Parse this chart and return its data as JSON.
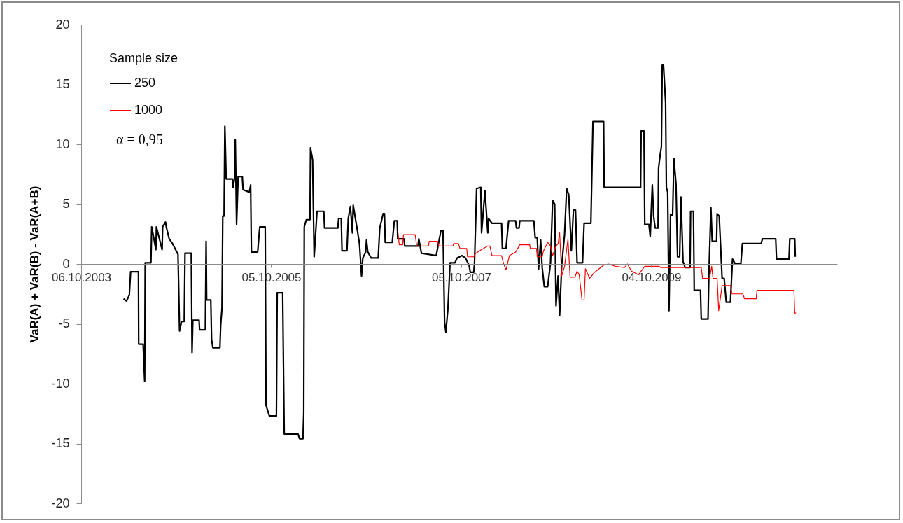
{
  "chart_data": {
    "type": "line",
    "ylabel": "VaR(A) + VaR(B) - VaR(A+B)",
    "legend_title": "Sample size",
    "legend": "top left",
    "grid": false,
    "annotations": [
      "α = 0,95"
    ],
    "xlim": [
      "2003-10-06",
      "2011-09-18"
    ],
    "xticks": [
      {
        "value": "2003-10-06",
        "label": "06.10.2003"
      },
      {
        "value": "2005-10-05",
        "label": "05.10.2005"
      },
      {
        "value": "2007-10-05",
        "label": "05.10.2007"
      },
      {
        "value": "2009-10-04",
        "label": "04.10.2009"
      }
    ],
    "ylim": [
      -20,
      20
    ],
    "yticks": [
      -20,
      -15,
      -10,
      -5,
      0,
      5,
      10,
      15,
      20
    ],
    "series": [
      {
        "name": "250",
        "color": "#000000",
        "x": [
          "2004-03-17",
          "2004-03-28",
          "2004-04-08",
          "2004-04-13",
          "2004-05-13",
          "2004-05-14",
          "2004-05-31",
          "2004-06-06",
          "2004-06-08",
          "2004-06-30",
          "2004-07-03",
          "2004-07-19",
          "2004-07-21",
          "2004-08-12",
          "2004-08-14",
          "2004-08-25",
          "2004-08-28",
          "2004-09-08",
          "2004-09-21",
          "2004-10-12",
          "2004-10-18",
          "2004-10-26",
          "2004-11-05",
          "2004-11-08",
          "2004-12-02",
          "2004-12-05",
          "2004-12-08",
          "2005-01-01",
          "2005-01-03",
          "2005-01-25",
          "2005-01-28",
          "2005-01-30",
          "2005-02-15",
          "2005-02-18",
          "2005-02-23",
          "2005-03-22",
          "2005-03-25",
          "2005-03-30",
          "2005-04-02",
          "2005-04-07",
          "2005-04-10",
          "2005-04-15",
          "2005-05-09",
          "2005-05-12",
          "2005-05-17",
          "2005-05-20",
          "2005-05-25",
          "2005-05-31",
          "2005-06-16",
          "2005-06-19",
          "2005-07-13",
          "2005-07-18",
          "2005-07-21",
          "2005-08-14",
          "2005-08-22",
          "2005-09-12",
          "2005-09-15",
          "2005-09-28",
          "2005-10-25",
          "2005-10-28",
          "2005-11-18",
          "2005-11-24",
          "2006-01-16",
          "2006-01-22",
          "2006-02-04",
          "2006-02-07",
          "2006-02-09",
          "2006-02-17",
          "2006-03-03",
          "2006-03-05",
          "2006-03-13",
          "2006-03-19",
          "2006-03-30",
          "2006-04-25",
          "2006-04-28",
          "2006-06-18",
          "2006-06-21",
          "2006-07-01",
          "2006-07-04",
          "2006-07-23",
          "2006-07-28",
          "2006-08-05",
          "2006-08-13",
          "2006-08-16",
          "2006-09-01",
          "2006-09-09",
          "2006-09-17",
          "2006-09-22",
          "2006-10-03",
          "2006-10-06",
          "2006-10-11",
          "2006-10-24",
          "2006-11-20",
          "2006-11-26",
          "2006-12-09",
          "2006-12-14",
          "2006-12-17",
          "2007-01-13",
          "2007-01-21",
          "2007-02-01",
          "2007-02-03",
          "2007-02-27",
          "2007-03-02",
          "2007-04-22",
          "2007-04-25",
          "2007-05-05",
          "2007-07-01",
          "2007-07-19",
          "2007-07-27",
          "2007-08-02",
          "2007-08-07",
          "2007-08-15",
          "2007-08-23",
          "2007-09-11",
          "2007-09-19",
          "2007-10-08",
          "2007-10-21",
          "2007-11-04",
          "2007-11-09",
          "2007-11-22",
          "2007-11-25",
          "2007-12-03",
          "2007-12-19",
          "2007-12-22",
          "2008-01-04",
          "2008-01-15",
          "2008-01-18",
          "2008-01-31",
          "2008-03-08",
          "2008-03-11",
          "2008-03-25",
          "2008-04-04",
          "2008-05-01",
          "2008-05-04",
          "2008-05-14",
          "2008-05-17",
          "2008-07-10",
          "2008-07-15",
          "2008-07-23",
          "2008-07-28",
          "2008-08-05",
          "2008-08-11",
          "2008-08-19",
          "2008-09-01",
          "2008-09-12",
          "2008-09-20",
          "2008-09-28",
          "2008-10-03",
          "2008-10-11",
          "2008-10-17",
          "2008-10-25",
          "2008-11-05",
          "2008-11-13",
          "2008-11-21",
          "2008-12-01",
          "2008-12-09",
          "2008-12-17",
          "2008-12-23",
          "2009-01-13",
          "2009-01-19",
          "2009-02-14",
          "2009-02-22",
          "2009-04-04",
          "2009-04-06",
          "2009-08-24",
          "2009-08-26",
          "2009-09-06",
          "2009-09-09",
          "2009-09-25",
          "2009-09-30",
          "2009-10-08",
          "2009-10-13",
          "2009-10-19",
          "2009-10-30",
          "2009-11-01",
          "2009-11-07",
          "2009-11-12",
          "2009-11-15",
          "2009-11-20",
          "2009-11-28",
          "2009-12-01",
          "2009-12-06",
          "2009-12-11",
          "2009-12-17",
          "2009-12-25",
          "2009-12-30",
          "2010-01-07",
          "2010-01-13",
          "2010-01-21",
          "2010-01-26",
          "2010-02-03",
          "2010-02-11",
          "2010-03-02",
          "2010-03-04",
          "2010-03-15",
          "2010-03-18",
          "2010-04-11",
          "2010-04-14",
          "2010-05-10",
          "2010-05-13",
          "2010-05-21",
          "2010-05-26",
          "2010-06-12",
          "2010-06-14",
          "2010-06-22",
          "2010-07-03",
          "2010-07-11",
          "2010-07-19",
          "2010-08-04",
          "2010-08-12",
          "2010-08-23",
          "2010-09-13",
          "2010-09-19",
          "2010-11-30",
          "2010-12-05",
          "2011-01-25",
          "2011-01-28",
          "2011-03-17",
          "2011-03-20",
          "2011-04-08",
          "2011-04-10"
        ],
        "values": [
          -2.9,
          -3.1,
          -2.6,
          -0.65,
          -0.65,
          -6.7,
          -6.7,
          -9.8,
          0.1,
          0.1,
          3.1,
          1.2,
          3.1,
          1.2,
          3.1,
          3.5,
          3.1,
          2.1,
          1.7,
          0.8,
          -5.6,
          -4.8,
          -4.8,
          0.9,
          0.9,
          -7.4,
          -4.7,
          -4.7,
          -5.5,
          -5.5,
          1.9,
          -3.0,
          -3.0,
          -6.3,
          -7.0,
          -7.0,
          -5.1,
          -3.7,
          4.0,
          4.0,
          11.5,
          7.1,
          7.1,
          6.4,
          7.2,
          10.4,
          3.3,
          7.3,
          7.3,
          6.2,
          6.0,
          6.6,
          1.0,
          1.0,
          3.1,
          3.1,
          -11.8,
          -12.7,
          -12.7,
          -2.4,
          -2.4,
          -14.2,
          -14.2,
          -14.6,
          -14.6,
          -12.4,
          3.1,
          3.7,
          3.7,
          9.7,
          8.7,
          0.6,
          4.4,
          4.4,
          3.0,
          3.0,
          3.8,
          3.8,
          1.1,
          1.1,
          3.8,
          4.8,
          2.6,
          4.9,
          2.8,
          1.7,
          -1.0,
          0.5,
          1.0,
          2.0,
          1.0,
          0.5,
          0.5,
          3.0,
          4.2,
          4.2,
          1.8,
          1.8,
          3.6,
          3.6,
          2.1,
          2.1,
          1.5,
          1.5,
          2.1,
          0.9,
          0.7,
          2.8,
          2.8,
          -4.9,
          -5.7,
          -3.7,
          0.1,
          0.1,
          0.5,
          0.7,
          0.5,
          -0.1,
          -0.7,
          -0.7,
          0.1,
          6.3,
          6.4,
          2.6,
          6.1,
          2.6,
          3.8,
          3.4,
          3.4,
          1.3,
          1.3,
          3.6,
          3.6,
          3.0,
          3.0,
          3.6,
          3.6,
          2.2,
          2.2,
          -0.45,
          2.0,
          -0.3,
          -1.9,
          -1.9,
          0.1,
          5.3,
          5.0,
          -3.5,
          -1.0,
          -4.3,
          -0.1,
          2.5,
          6.3,
          5.8,
          1.1,
          4.5,
          4.5,
          0.1,
          0.1,
          3.4,
          3.4,
          11.9,
          11.9,
          6.4,
          6.4,
          11.1,
          11.1,
          3.3,
          3.3,
          2.3,
          6.6,
          4.0,
          3.0,
          3.0,
          8.0,
          9.1,
          9.8,
          16.6,
          16.6,
          13.5,
          6.4,
          6.0,
          -3.9,
          4.1,
          4.1,
          8.8,
          6.7,
          0.6,
          0.6,
          5.6,
          0.2,
          -0.3,
          -0.3,
          4.4,
          4.4,
          -2.2,
          -2.2,
          -4.6,
          -4.6,
          -1.1,
          4.7,
          1.9,
          1.9,
          4.2,
          4.0,
          -1.2,
          -1.2,
          -3.2,
          -3.2,
          0.4,
          0.0,
          0.0,
          1.7,
          1.7,
          2.1,
          2.1,
          0.4,
          0.4,
          2.1,
          2.1,
          0.6
        ]
      },
      {
        "name": "1000",
        "color": "#ff0000",
        "x": [
          "2007-02-03",
          "2007-02-09",
          "2007-02-22",
          "2007-02-25",
          "2007-04-11",
          "2007-04-17",
          "2007-06-01",
          "2007-06-04",
          "2007-07-06",
          "2007-07-11",
          "2007-09-03",
          "2007-09-06",
          "2007-09-24",
          "2007-09-30",
          "2007-10-26",
          "2007-10-29",
          "2007-11-22",
          "2007-11-25",
          "2007-12-14",
          "2008-01-15",
          "2008-01-23",
          "2008-01-31",
          "2008-03-08",
          "2008-03-16",
          "2008-03-25",
          "2008-04-07",
          "2008-05-01",
          "2008-05-17",
          "2008-06-24",
          "2008-06-26",
          "2008-07-20",
          "2008-07-23",
          "2008-08-11",
          "2008-08-16",
          "2008-09-01",
          "2008-09-12",
          "2008-09-20",
          "2008-10-03",
          "2008-10-11",
          "2008-10-17",
          "2008-10-25",
          "2008-11-05",
          "2008-11-18",
          "2008-11-26",
          "2008-12-15",
          "2008-12-23",
          "2008-12-31",
          "2009-01-11",
          "2009-01-19",
          "2009-01-24",
          "2009-02-09",
          "2009-02-28",
          "2009-04-04",
          "2009-04-22",
          "2009-05-19",
          "2009-06-23",
          "2009-07-04",
          "2009-07-20",
          "2009-08-16",
          "2009-09-09",
          "2009-11-04",
          "2009-11-09",
          "2010-04-14",
          "2010-04-19",
          "2010-05-16",
          "2010-05-24",
          "2010-05-29",
          "2010-06-14",
          "2010-06-20",
          "2010-07-03",
          "2010-08-04",
          "2010-08-10",
          "2010-09-21",
          "2010-09-27",
          "2010-11-11",
          "2010-11-14",
          "2011-04-05",
          "2011-04-08",
          "2011-04-13"
        ],
        "values": [
          2.75,
          1.6,
          1.6,
          2.45,
          2.45,
          1.5,
          1.5,
          1.9,
          1.9,
          1.5,
          1.5,
          1.7,
          1.7,
          1.3,
          1.3,
          0.6,
          0.6,
          0.8,
          1.1,
          1.5,
          1.5,
          0.7,
          0.7,
          0.0,
          -0.5,
          0.7,
          1.0,
          1.6,
          1.6,
          1.3,
          1.3,
          0.6,
          0.6,
          1.1,
          1.8,
          1.5,
          0.7,
          1.5,
          1.7,
          2.6,
          -1.0,
          -0.2,
          2.1,
          -1.1,
          -1.1,
          -0.6,
          -0.9,
          -3.0,
          -3.0,
          -0.4,
          -1.2,
          -0.7,
          -0.1,
          0.0,
          -0.2,
          -0.3,
          0.0,
          -0.6,
          -0.9,
          -0.2,
          -0.2,
          -0.3,
          -0.3,
          -1.2,
          -1.2,
          -0.2,
          -1.2,
          -1.2,
          -3.9,
          -1.8,
          -1.8,
          -2.5,
          -2.5,
          -2.9,
          -2.9,
          -2.2,
          -2.2,
          -4.1,
          -4.1
        ]
      }
    ]
  }
}
